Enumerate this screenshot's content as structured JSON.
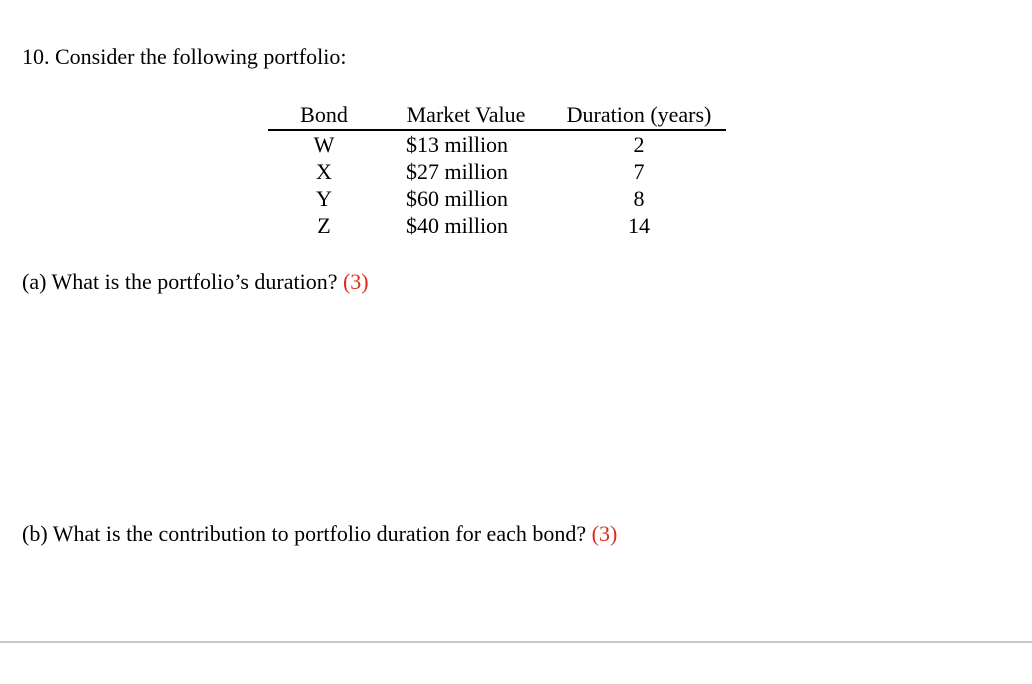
{
  "heading": "10. Consider the following portfolio:",
  "table": {
    "headers": {
      "bond": "Bond",
      "market_value": "Market Value",
      "duration": "Duration (years)"
    },
    "rows": [
      {
        "bond": "W",
        "market_value": "$13 million",
        "duration": "2"
      },
      {
        "bond": "X",
        "market_value": "$27 million",
        "duration": "7"
      },
      {
        "bond": "Y",
        "market_value": "$60 million",
        "duration": "8"
      },
      {
        "bond": "Z",
        "market_value": "$40 million",
        "duration": "14"
      }
    ]
  },
  "questions": {
    "a": {
      "text": "(a) What is the portfolio’s duration?",
      "points": "(3)"
    },
    "b": {
      "text": "(b) What is the contribution to portfolio duration for each bond?",
      "points": "(3)"
    }
  },
  "colors": {
    "points": "#e02a1f",
    "text": "#000000",
    "divider": "#c8c8c8"
  }
}
